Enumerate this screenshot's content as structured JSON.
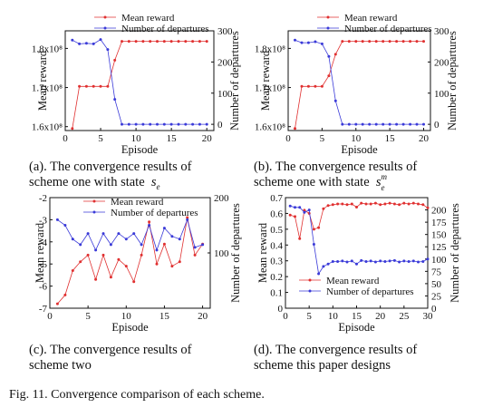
{
  "figure_caption": "Fig. 11.  Convergence comparison of each scheme.",
  "panels": [
    {
      "caption_line1": "(a). The convergence results of",
      "caption_line2": "scheme one with state",
      "state_symbol": "s",
      "state_sub": "e",
      "state_sup": ""
    },
    {
      "caption_line1": "(b). The convergence results of",
      "caption_line2": "scheme one with state",
      "state_symbol": "s",
      "state_sub": "e",
      "state_sup": "m"
    },
    {
      "caption_line1": "(c). The convergence results of",
      "caption_line2": "scheme two",
      "state_symbol": "",
      "state_sub": "",
      "state_sup": ""
    },
    {
      "caption_line1": "(d). The convergence results of",
      "caption_line2": "scheme this paper designs",
      "state_symbol": "",
      "state_sub": "",
      "state_sup": ""
    }
  ],
  "colors": {
    "mean_reward": "#e03030",
    "departures": "#3a3ad8",
    "axis": "#111111"
  },
  "chart_data": [
    {
      "type": "line",
      "legend_position": "top",
      "xlabel": "Episode",
      "ylabel": "Mean reward",
      "y2label": "Number of departures",
      "xlim": [
        0,
        21
      ],
      "ylim": [
        159000000,
        184500000
      ],
      "y2lim": [
        -20,
        300
      ],
      "xticks": [
        0,
        5,
        10,
        15,
        20
      ],
      "xtick_labels": [
        "0",
        "5",
        "10",
        "15",
        "20"
      ],
      "yticks": [
        160000000,
        170000000,
        180000000
      ],
      "ytick_labels": [
        "1.6x10⁸",
        "1.7x10⁸",
        "1.8x10⁸"
      ],
      "y2ticks": [
        0,
        100,
        200,
        300
      ],
      "y2tick_labels": [
        "0",
        "100",
        "200",
        "300"
      ],
      "x": [
        1,
        2,
        3,
        4,
        5,
        6,
        7,
        8,
        9,
        10,
        11,
        12,
        13,
        14,
        15,
        16,
        17,
        18,
        19,
        20
      ],
      "series": [
        {
          "name": "Mean reward",
          "axis": "left",
          "values": [
            159500000,
            170300000,
            170300000,
            170300000,
            170300000,
            170300000,
            177000000,
            181800000,
            181800000,
            181800000,
            181800000,
            181800000,
            181800000,
            181800000,
            181800000,
            181800000,
            181800000,
            181800000,
            181800000,
            181800000
          ]
        },
        {
          "name": "Number of departures",
          "axis": "right",
          "values": [
            270,
            258,
            260,
            258,
            272,
            240,
            80,
            0,
            0,
            0,
            0,
            0,
            0,
            0,
            0,
            0,
            0,
            0,
            0,
            0
          ]
        }
      ]
    },
    {
      "type": "line",
      "legend_position": "top",
      "xlabel": "Episode",
      "ylabel": "Mean reward",
      "y2label": "Number of departures",
      "xlim": [
        0,
        21
      ],
      "ylim": [
        159000000,
        184500000
      ],
      "y2lim": [
        -20,
        300
      ],
      "xticks": [
        0,
        5,
        10,
        15,
        20
      ],
      "xtick_labels": [
        "0",
        "5",
        "10",
        "15",
        "20"
      ],
      "yticks": [
        160000000,
        170000000,
        180000000
      ],
      "ytick_labels": [
        "1.6x10⁸",
        "1.7x10⁸",
        "1.8x10⁸"
      ],
      "y2ticks": [
        0,
        100,
        200,
        300
      ],
      "y2tick_labels": [
        "0",
        "100",
        "200",
        "300"
      ],
      "x": [
        1,
        2,
        3,
        4,
        5,
        6,
        7,
        8,
        9,
        10,
        11,
        12,
        13,
        14,
        15,
        16,
        17,
        18,
        19,
        20
      ],
      "series": [
        {
          "name": "Mean reward",
          "axis": "left",
          "values": [
            159500000,
            170300000,
            170300000,
            170300000,
            170300000,
            173000000,
            178500000,
            181800000,
            181800000,
            181800000,
            181800000,
            181800000,
            181800000,
            181800000,
            181800000,
            181800000,
            181800000,
            181800000,
            181800000,
            181800000
          ]
        },
        {
          "name": "Number of departures",
          "axis": "right",
          "values": [
            270,
            262,
            262,
            265,
            258,
            218,
            75,
            0,
            0,
            0,
            0,
            0,
            0,
            0,
            0,
            0,
            0,
            0,
            0,
            0
          ]
        }
      ]
    },
    {
      "type": "line",
      "legend_position": "top",
      "xlabel": "Episode",
      "ylabel": "Mean reward",
      "y2label": "Number of departures",
      "xlim": [
        0,
        21
      ],
      "ylim": [
        -7,
        -2
      ],
      "y2lim": [
        0,
        200
      ],
      "xticks": [
        0,
        5,
        10,
        15,
        20
      ],
      "xtick_labels": [
        "0",
        "5",
        "10",
        "15",
        "20"
      ],
      "yticks": [
        -7,
        -6,
        -5,
        -4,
        -3,
        -2
      ],
      "ytick_labels": [
        "-7",
        "-6",
        "-5",
        "-4",
        "-3",
        "-2"
      ],
      "y2ticks": [
        100,
        200
      ],
      "y2tick_labels": [
        "100",
        "200"
      ],
      "x": [
        1,
        2,
        3,
        4,
        5,
        6,
        7,
        8,
        9,
        10,
        11,
        12,
        13,
        14,
        15,
        16,
        17,
        18,
        19,
        20
      ],
      "series": [
        {
          "name": "Mean reward",
          "axis": "left",
          "values": [
            -6.8,
            -6.4,
            -5.3,
            -4.9,
            -4.6,
            -5.7,
            -4.6,
            -5.6,
            -4.8,
            -5.1,
            -5.8,
            -4.6,
            -3.1,
            -5.0,
            -4.1,
            -5.1,
            -4.9,
            -2.9,
            -4.6,
            -4.1
          ]
        },
        {
          "name": "Number of departures",
          "axis": "right",
          "values": [
            160,
            150,
            125,
            115,
            135,
            105,
            135,
            115,
            135,
            125,
            135,
            115,
            150,
            105,
            145,
            130,
            125,
            160,
            110,
            115
          ]
        }
      ]
    },
    {
      "type": "line",
      "legend_position": "bottom-right",
      "xlabel": "Episode",
      "ylabel": "Mean reward",
      "y2label": "Number of departures",
      "xlim": [
        0,
        30
      ],
      "ylim": [
        0,
        0.7
      ],
      "y2lim": [
        0,
        225
      ],
      "xticks": [
        0,
        5,
        10,
        15,
        20,
        25,
        30
      ],
      "xtick_labels": [
        "0",
        "5",
        "10",
        "15",
        "20",
        "25",
        "30"
      ],
      "yticks": [
        0,
        0.1,
        0.2,
        0.3,
        0.4,
        0.5,
        0.6,
        0.7
      ],
      "ytick_labels": [
        "0",
        "0.1",
        "0.2",
        "0.3",
        "0.4",
        "0.5",
        "0.6",
        "0.7"
      ],
      "y2ticks": [
        0,
        25,
        50,
        75,
        100,
        125,
        150,
        175,
        200
      ],
      "y2tick_labels": [
        "0",
        "25",
        "50",
        "75",
        "100",
        "125",
        "150",
        "175",
        "200"
      ],
      "x": [
        1,
        2,
        3,
        4,
        5,
        6,
        7,
        8,
        9,
        10,
        11,
        12,
        13,
        14,
        15,
        16,
        17,
        18,
        19,
        20,
        21,
        22,
        23,
        24,
        25,
        26,
        27,
        28,
        29,
        30
      ],
      "series": [
        {
          "name": "Mean reward",
          "axis": "left",
          "values": [
            0.59,
            0.58,
            0.44,
            0.62,
            0.6,
            0.5,
            0.51,
            0.63,
            0.65,
            0.655,
            0.66,
            0.66,
            0.655,
            0.66,
            0.64,
            0.665,
            0.66,
            0.66,
            0.665,
            0.655,
            0.66,
            0.665,
            0.66,
            0.655,
            0.665,
            0.66,
            0.665,
            0.66,
            0.655,
            0.635
          ]
        },
        {
          "name": "Number of departures",
          "axis": "right",
          "values": [
            208,
            205,
            205,
            195,
            200,
            130,
            70,
            85,
            90,
            95,
            95,
            96,
            94,
            96,
            90,
            97,
            95,
            96,
            94,
            96,
            95,
            96,
            97,
            94,
            96,
            95,
            96,
            94,
            95,
            100
          ]
        }
      ]
    }
  ]
}
